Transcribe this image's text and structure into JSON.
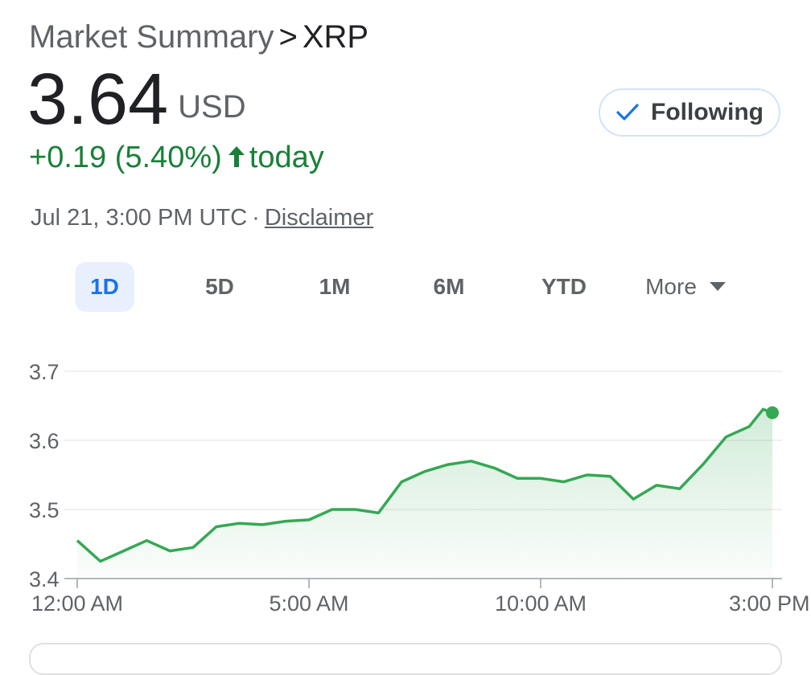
{
  "header": {
    "breadcrumb_root": "Market Summary",
    "breadcrumb_sep": ">",
    "ticker": "XRP",
    "price": "3.64",
    "currency": "USD",
    "change_text": "+0.19 (5.40%)",
    "change_period": "today",
    "follow_label": "Following",
    "timestamp": "Jul 21, 3:00 PM UTC",
    "meta_sep": "·",
    "disclaimer_label": "Disclaimer"
  },
  "colors": {
    "positive": "#188038",
    "line": "#34a853",
    "accent": "#1a73e8",
    "active_tab_bg": "#e8f0fe"
  },
  "icons": {
    "follow": "checkmark-icon",
    "change": "arrow-up-icon",
    "more": "caret-down-icon"
  },
  "range_tabs": [
    {
      "label": "1D",
      "active": true
    },
    {
      "label": "5D",
      "active": false
    },
    {
      "label": "1M",
      "active": false
    },
    {
      "label": "6M",
      "active": false
    },
    {
      "label": "YTD",
      "active": false
    },
    {
      "label": "More",
      "active": false
    }
  ],
  "chart_data": {
    "type": "area",
    "xlabel": "",
    "ylabel": "",
    "ylim": [
      3.4,
      3.7
    ],
    "y_ticks": [
      "3.7",
      "3.6",
      "3.5",
      "3.4"
    ],
    "x_ticks": [
      "12:00 AM",
      "5:00 AM",
      "10:00 AM",
      "3:00 PM"
    ],
    "x_unit": "hours since 12:00 AM",
    "xlim": [
      0,
      15
    ],
    "grid": true,
    "series": [
      {
        "x": [
          0,
          0.5,
          1,
          1.5,
          2,
          2.5,
          3,
          3.5,
          4,
          4.5,
          5,
          5.5,
          6,
          6.5,
          7,
          7.5,
          8,
          8.5,
          9,
          9.5,
          10,
          10.5,
          11,
          11.5,
          12,
          12.5,
          13,
          13.5,
          14,
          14.5,
          14.8,
          15
        ],
        "values": [
          3.455,
          3.425,
          3.44,
          3.455,
          3.44,
          3.445,
          3.475,
          3.48,
          3.478,
          3.483,
          3.485,
          3.5,
          3.5,
          3.495,
          3.54,
          3.555,
          3.565,
          3.57,
          3.56,
          3.545,
          3.545,
          3.54,
          3.55,
          3.548,
          3.515,
          3.535,
          3.53,
          3.565,
          3.605,
          3.62,
          3.645,
          3.64
        ]
      }
    ]
  }
}
